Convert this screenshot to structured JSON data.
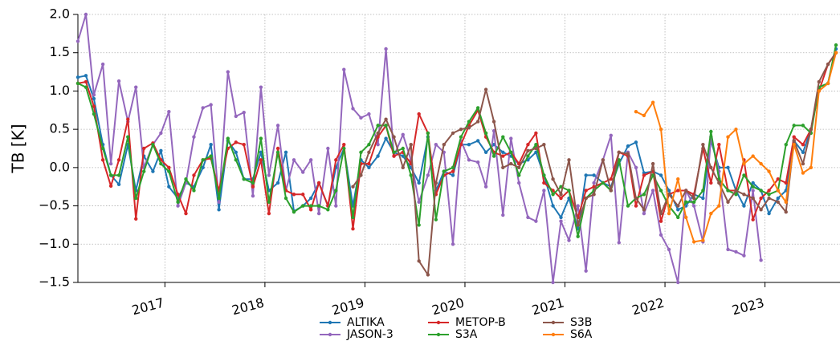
{
  "chart_data": {
    "type": "line",
    "ylabel": "TB [K]",
    "x": [
      2016.13,
      2016.21,
      2016.29,
      2016.38,
      2016.46,
      2016.54,
      2016.63,
      2016.71,
      2016.79,
      2016.88,
      2016.96,
      2017.04,
      2017.13,
      2017.21,
      2017.29,
      2017.38,
      2017.46,
      2017.54,
      2017.63,
      2017.71,
      2017.79,
      2017.88,
      2017.96,
      2018.04,
      2018.13,
      2018.21,
      2018.29,
      2018.38,
      2018.46,
      2018.54,
      2018.63,
      2018.71,
      2018.79,
      2018.88,
      2018.96,
      2019.04,
      2019.13,
      2019.21,
      2019.29,
      2019.38,
      2019.46,
      2019.54,
      2019.63,
      2019.71,
      2019.79,
      2019.88,
      2019.96,
      2020.04,
      2020.13,
      2020.21,
      2020.29,
      2020.38,
      2020.46,
      2020.54,
      2020.63,
      2020.71,
      2020.79,
      2020.88,
      2020.96,
      2021.04,
      2021.13,
      2021.21,
      2021.29,
      2021.38,
      2021.46,
      2021.54,
      2021.63,
      2021.71,
      2021.79,
      2021.88,
      2021.96,
      2022.04,
      2022.13,
      2022.21,
      2022.29,
      2022.38,
      2022.46,
      2022.54,
      2022.63,
      2022.71,
      2022.79,
      2022.88,
      2022.96,
      2023.04,
      2023.13,
      2023.21,
      2023.29,
      2023.38,
      2023.46,
      2023.54,
      2023.63,
      2023.71
    ],
    "series": [
      {
        "name": "ALTIKA",
        "color": "#1f77b4",
        "values": [
          1.18,
          1.2,
          0.9,
          0.3,
          -0.1,
          -0.22,
          0.3,
          -0.3,
          0.15,
          -0.05,
          0.22,
          -0.25,
          -0.4,
          -0.2,
          -0.25,
          0.0,
          0.3,
          -0.55,
          0.35,
          0.2,
          -0.15,
          -0.15,
          0.2,
          -0.3,
          -0.2,
          0.2,
          -0.57,
          -0.5,
          -0.4,
          -0.2,
          -0.5,
          0.0,
          0.25,
          -0.5,
          0.1,
          0.0,
          0.15,
          0.38,
          0.2,
          0.15,
          0.0,
          -0.2,
          0.4,
          -0.3,
          -0.05,
          -0.1,
          0.3,
          0.3,
          0.35,
          0.2,
          0.3,
          0.2,
          0.15,
          0.05,
          0.1,
          0.2,
          -0.1,
          -0.5,
          -0.65,
          -0.4,
          -0.8,
          -0.1,
          -0.1,
          -0.2,
          -0.25,
          0.05,
          0.28,
          0.33,
          -0.07,
          -0.05,
          -0.1,
          -0.3,
          -0.55,
          -0.5,
          -0.35,
          -0.4,
          0.35,
          0.0,
          0.0,
          -0.3,
          -0.5,
          -0.2,
          -0.3,
          -0.6,
          -0.4,
          -0.3,
          0.35,
          0.2,
          0.5,
          1.05,
          1.1,
          1.55
        ]
      },
      {
        "name": "JASON-3",
        "color": "#9467bd",
        "values": [
          1.65,
          2.0,
          0.95,
          1.35,
          0.05,
          1.13,
          0.6,
          1.05,
          0.0,
          0.3,
          0.45,
          0.73,
          -0.5,
          -0.2,
          0.4,
          0.78,
          0.82,
          -0.45,
          1.25,
          0.67,
          0.72,
          -0.37,
          1.05,
          -0.1,
          0.55,
          -0.3,
          0.1,
          -0.06,
          0.1,
          -0.6,
          0.25,
          -0.5,
          1.28,
          0.77,
          0.65,
          0.7,
          0.3,
          1.55,
          0.15,
          0.43,
          0.1,
          -0.45,
          -0.1,
          0.3,
          0.2,
          -1.0,
          0.35,
          0.1,
          0.07,
          -0.25,
          0.48,
          -0.62,
          0.38,
          -0.2,
          -0.65,
          -0.7,
          -0.3,
          -1.5,
          -0.7,
          -0.95,
          -0.5,
          -1.35,
          -0.2,
          0.1,
          0.42,
          -0.98,
          0.2,
          0.0,
          -0.6,
          -0.3,
          -0.88,
          -1.07,
          -1.5,
          -0.3,
          -0.5,
          -0.97,
          0.4,
          -0.05,
          -1.07,
          -1.1,
          -1.15,
          -0.3,
          -1.21,
          null,
          null,
          null,
          null,
          null,
          null,
          null,
          null,
          null
        ]
      },
      {
        "name": "METOP-B",
        "color": "#d62728",
        "values": [
          1.1,
          1.12,
          0.8,
          0.1,
          -0.24,
          0.1,
          0.63,
          -0.67,
          0.25,
          0.32,
          0.1,
          0.0,
          -0.35,
          -0.6,
          -0.1,
          0.1,
          0.12,
          -0.3,
          0.25,
          0.33,
          0.3,
          -0.25,
          0.1,
          -0.6,
          0.25,
          -0.3,
          -0.35,
          -0.35,
          -0.55,
          -0.2,
          -0.5,
          0.1,
          0.3,
          -0.8,
          0.05,
          0.05,
          0.4,
          0.55,
          0.15,
          0.2,
          0.05,
          0.7,
          0.45,
          -0.35,
          -0.1,
          -0.05,
          0.3,
          0.55,
          0.75,
          0.4,
          0.2,
          0.15,
          0.2,
          0.05,
          0.3,
          0.45,
          -0.2,
          -0.3,
          -0.4,
          -0.3,
          -0.65,
          -0.3,
          -0.25,
          -0.2,
          -0.15,
          0.2,
          0.15,
          -0.5,
          -0.1,
          -0.05,
          -0.7,
          -0.35,
          -0.3,
          -0.3,
          -0.35,
          0.25,
          -0.2,
          0.3,
          -0.3,
          -0.3,
          0.1,
          -0.68,
          -0.4,
          -0.3,
          -0.15,
          -0.2,
          0.4,
          0.3,
          0.5,
          1.0,
          1.35,
          1.5
        ]
      },
      {
        "name": "S3A",
        "color": "#2ca02c",
        "values": [
          1.1,
          1.05,
          0.7,
          0.25,
          -0.1,
          -0.1,
          0.4,
          -0.4,
          -0.05,
          0.3,
          0.05,
          -0.05,
          -0.45,
          -0.15,
          -0.3,
          0.1,
          0.15,
          -0.4,
          0.38,
          0.1,
          -0.15,
          -0.2,
          0.38,
          -0.45,
          0.2,
          -0.4,
          -0.58,
          -0.5,
          -0.5,
          -0.5,
          -0.55,
          -0.3,
          0.25,
          -0.65,
          0.2,
          0.3,
          0.55,
          0.55,
          0.2,
          0.25,
          -0.1,
          -0.75,
          0.45,
          -0.68,
          -0.05,
          0.0,
          0.4,
          0.6,
          0.78,
          0.45,
          0.15,
          0.4,
          0.2,
          -0.1,
          0.15,
          0.3,
          -0.1,
          -0.35,
          -0.25,
          -0.3,
          -0.9,
          -0.4,
          -0.3,
          -0.2,
          -0.3,
          0.1,
          -0.5,
          -0.4,
          -0.35,
          -0.1,
          -0.3,
          -0.5,
          -0.65,
          -0.45,
          -0.45,
          -0.3,
          0.47,
          -0.15,
          -0.3,
          -0.35,
          -0.1,
          -0.25,
          -0.3,
          -0.35,
          -0.3,
          0.3,
          0.55,
          0.55,
          0.45,
          1.05,
          1.1,
          1.6
        ]
      },
      {
        "name": "S3B",
        "color": "#8c564b",
        "values": [
          null,
          null,
          null,
          null,
          null,
          null,
          null,
          null,
          null,
          null,
          null,
          null,
          null,
          null,
          null,
          null,
          null,
          null,
          null,
          null,
          null,
          null,
          null,
          null,
          null,
          null,
          null,
          null,
          null,
          null,
          null,
          null,
          null,
          -0.25,
          -0.1,
          0.2,
          0.45,
          0.63,
          0.4,
          0.0,
          0.3,
          -1.22,
          -1.4,
          -0.2,
          0.3,
          0.45,
          0.5,
          0.52,
          0.6,
          1.02,
          0.6,
          0.0,
          0.05,
          0.0,
          0.22,
          0.25,
          0.3,
          -0.15,
          -0.35,
          0.1,
          -0.75,
          -0.4,
          -0.35,
          0.1,
          -0.3,
          0.2,
          0.18,
          -0.4,
          -0.55,
          0.05,
          -0.6,
          -0.35,
          -0.5,
          -0.3,
          -0.4,
          0.3,
          0.0,
          -0.2,
          -0.45,
          -0.3,
          -0.35,
          -0.4,
          -0.55,
          -0.4,
          -0.45,
          -0.58,
          0.35,
          0.05,
          0.5,
          1.12,
          1.35,
          1.5
        ]
      },
      {
        "name": "S6A",
        "color": "#ff7f0e",
        "values": [
          null,
          null,
          null,
          null,
          null,
          null,
          null,
          null,
          null,
          null,
          null,
          null,
          null,
          null,
          null,
          null,
          null,
          null,
          null,
          null,
          null,
          null,
          null,
          null,
          null,
          null,
          null,
          null,
          null,
          null,
          null,
          null,
          null,
          null,
          null,
          null,
          null,
          null,
          null,
          null,
          null,
          null,
          null,
          null,
          null,
          null,
          null,
          null,
          null,
          null,
          null,
          null,
          null,
          null,
          null,
          null,
          null,
          null,
          null,
          null,
          null,
          null,
          null,
          null,
          null,
          null,
          null,
          0.73,
          0.68,
          0.85,
          0.5,
          -0.6,
          -0.15,
          -0.65,
          -0.97,
          -0.95,
          -0.6,
          -0.5,
          0.4,
          0.5,
          0.05,
          0.15,
          0.05,
          -0.05,
          -0.3,
          -0.45,
          0.3,
          -0.07,
          0.0,
          1.0,
          1.1,
          1.5
        ]
      }
    ],
    "xlim": [
      2016.13,
      2023.75
    ],
    "xticks": [
      2017,
      2018,
      2019,
      2020,
      2021,
      2022,
      2023
    ],
    "ylim": [
      -1.5,
      2.0
    ],
    "yticks": [
      {
        "value": -1.5,
        "label": "−1.5"
      },
      {
        "value": -1.0,
        "label": "−1.0"
      },
      {
        "value": -0.5,
        "label": "−0.5"
      },
      {
        "value": 0.0,
        "label": "0.0"
      },
      {
        "value": 0.5,
        "label": "0.5"
      },
      {
        "value": 1.0,
        "label": "1.0"
      },
      {
        "value": 1.5,
        "label": "1.5"
      },
      {
        "value": 2.0,
        "label": "2.0"
      }
    ],
    "grid": true,
    "legend": "bottom"
  }
}
